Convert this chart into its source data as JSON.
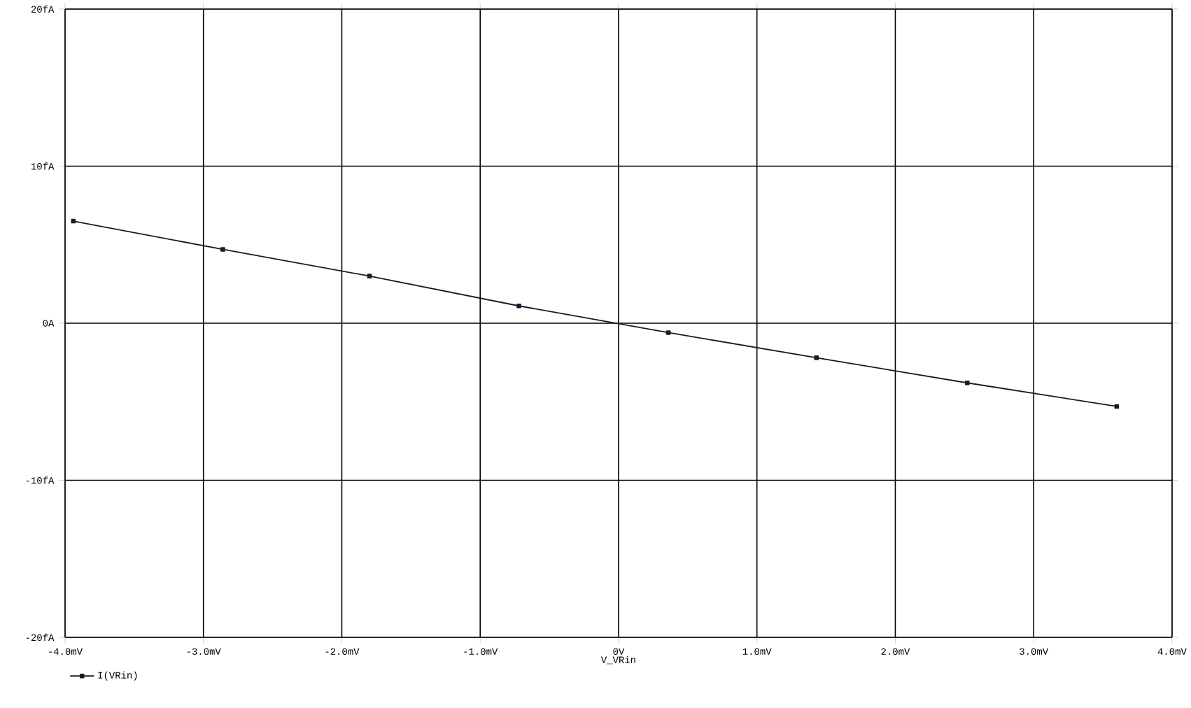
{
  "chart_data": {
    "type": "line",
    "xlabel": "V_VRin",
    "xlim": [
      -4,
      4
    ],
    "ylim": [
      -20,
      20
    ],
    "xticks": [
      {
        "value": -4,
        "label": "-4.0mV"
      },
      {
        "value": -3,
        "label": "-3.0mV"
      },
      {
        "value": -2,
        "label": "-2.0mV"
      },
      {
        "value": -1,
        "label": "-1.0mV"
      },
      {
        "value": 0,
        "label": "0V"
      },
      {
        "value": 1,
        "label": "1.0mV"
      },
      {
        "value": 2,
        "label": "2.0mV"
      },
      {
        "value": 3,
        "label": "3.0mV"
      },
      {
        "value": 4,
        "label": "4.0mV"
      }
    ],
    "yticks": [
      {
        "value": -20,
        "label": "-20fA"
      },
      {
        "value": -10,
        "label": "-10fA"
      },
      {
        "value": 0,
        "label": "0A"
      },
      {
        "value": 10,
        "label": "10fA"
      },
      {
        "value": 20,
        "label": "20fA"
      }
    ],
    "grid": true,
    "legend": "bottom left",
    "marker": "square",
    "line_style": "solid",
    "series": [
      {
        "name": "I(VRin)",
        "color": "#1a1a2a",
        "x": [
          -3.94,
          -2.86,
          -1.8,
          -0.72,
          0.36,
          1.43,
          2.52,
          3.6
        ],
        "values": [
          6.5,
          4.7,
          3.0,
          1.1,
          -0.6,
          -2.2,
          -3.8,
          -5.3
        ]
      }
    ]
  }
}
